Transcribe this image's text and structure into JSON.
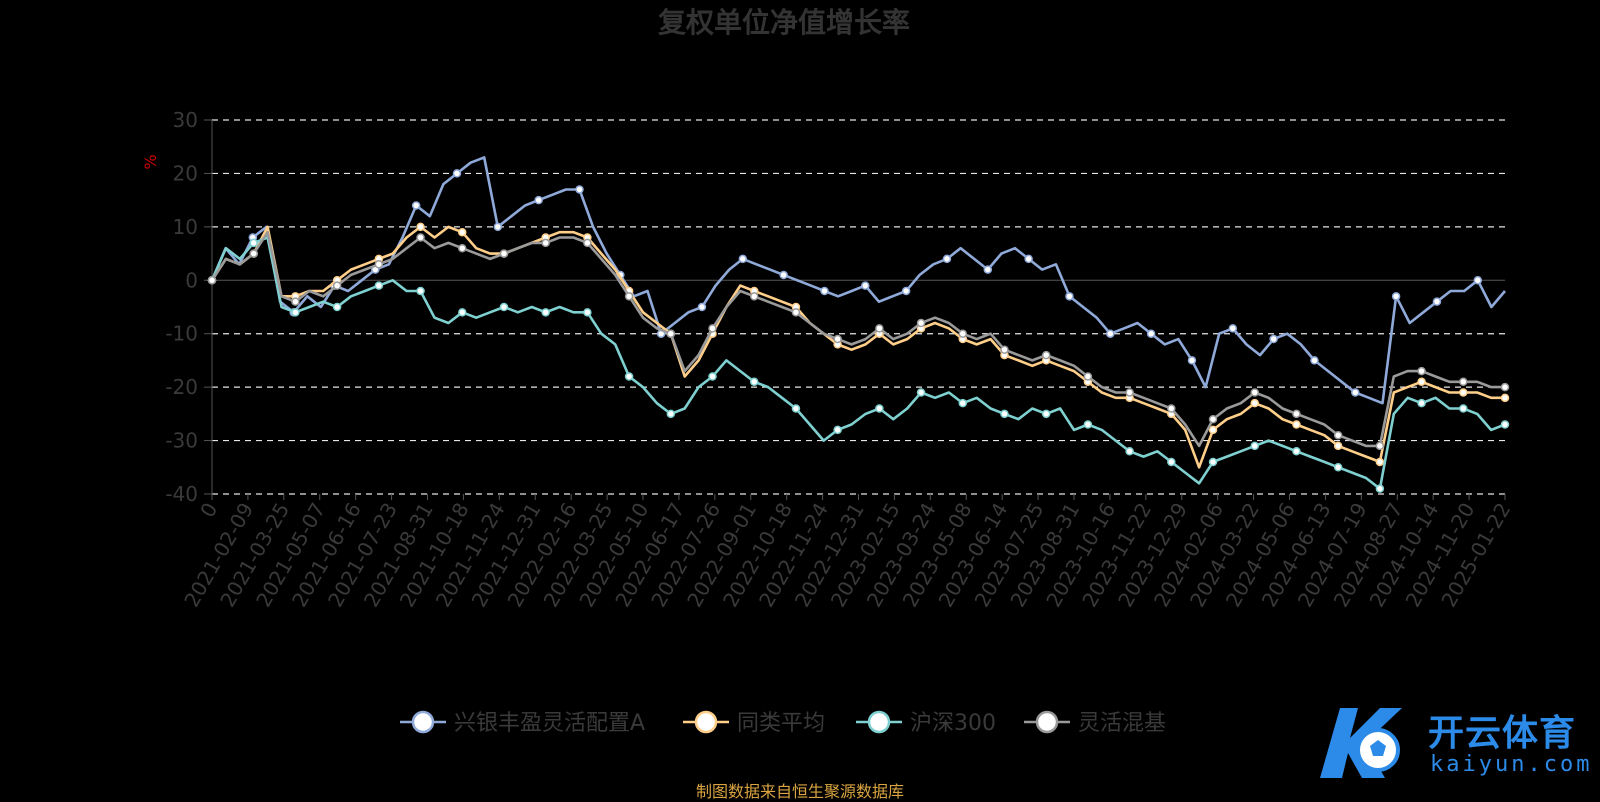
{
  "chart_data": {
    "type": "line",
    "title": "复权单位净值增长率",
    "ylabel": "%",
    "ylim": [
      -40,
      30
    ],
    "yticks": [
      30,
      20,
      10,
      0,
      -10,
      -20,
      -30,
      -40
    ],
    "grid": true,
    "legend_position": "bottom-center",
    "x_tick_labels": [
      "0",
      "2021-02-09",
      "2021-03-25",
      "2021-05-07",
      "2021-06-16",
      "2021-07-23",
      "2021-08-31",
      "2021-10-18",
      "2021-11-24",
      "2021-12-31",
      "2022-02-16",
      "2022-03-25",
      "2022-05-10",
      "2022-06-17",
      "2022-07-26",
      "2022-09-01",
      "2022-10-18",
      "2022-11-24",
      "2022-12-31",
      "2023-02-15",
      "2023-03-24",
      "2023-05-08",
      "2023-06-14",
      "2023-07-25",
      "2023-08-31",
      "2023-10-16",
      "2023-11-22",
      "2023-12-29",
      "2024-02-06",
      "2024-03-22",
      "2024-05-06",
      "2024-06-13",
      "2024-07-19",
      "2024-08-27",
      "2024-10-14",
      "2024-11-20",
      "2025-01-22"
    ],
    "series": [
      {
        "name": "兴银丰盈灵活配置A",
        "color": "#8fa9d9",
        "values": [
          0,
          6,
          3,
          8,
          10,
          -4,
          -6,
          -3,
          -5,
          -1,
          -2,
          0,
          2,
          3,
          8,
          14,
          12,
          18,
          20,
          22,
          23,
          10,
          12,
          14,
          15,
          16,
          17,
          17,
          10,
          5,
          1,
          -3,
          -2,
          -10,
          -8,
          -6,
          -5,
          -1,
          2,
          4,
          3,
          2,
          1,
          0,
          -1,
          -2,
          -3,
          -2,
          -1,
          -4,
          -3,
          -2,
          1,
          3,
          4,
          6,
          4,
          2,
          5,
          6,
          4,
          2,
          3,
          -3,
          -5,
          -7,
          -10,
          -9,
          -8,
          -10,
          -12,
          -11,
          -15,
          -20,
          -10,
          -9,
          -12,
          -14,
          -11,
          -10,
          -12,
          -15,
          -17,
          -19,
          -21,
          -22,
          -23,
          -3,
          -8,
          -6,
          -4,
          -2,
          -2,
          0,
          -5,
          -2
        ]
      },
      {
        "name": "同类平均",
        "color": "#ffcf8a",
        "values": [
          0,
          4,
          3,
          5,
          10,
          -3,
          -3,
          -2,
          -2,
          0,
          2,
          3,
          4,
          5,
          8,
          10,
          8,
          10,
          9,
          6,
          5,
          5,
          6,
          7,
          8,
          9,
          9,
          8,
          5,
          2,
          -2,
          -6,
          -8,
          -10,
          -18,
          -15,
          -10,
          -5,
          -1,
          -2,
          -3,
          -4,
          -5,
          -8,
          -10,
          -12,
          -13,
          -12,
          -10,
          -12,
          -11,
          -9,
          -8,
          -9,
          -11,
          -12,
          -11,
          -14,
          -15,
          -16,
          -15,
          -16,
          -17,
          -19,
          -21,
          -22,
          -22,
          -23,
          -24,
          -25,
          -28,
          -35,
          -28,
          -26,
          -25,
          -23,
          -24,
          -26,
          -27,
          -28,
          -29,
          -31,
          -32,
          -33,
          -34,
          -21,
          -20,
          -19,
          -20,
          -21,
          -21,
          -21,
          -22,
          -22
        ]
      },
      {
        "name": "沪深300",
        "color": "#7fd0d0",
        "values": [
          0,
          6,
          4,
          7,
          8,
          -5,
          -6,
          -5,
          -4,
          -5,
          -3,
          -2,
          -1,
          0,
          -2,
          -2,
          -7,
          -8,
          -6,
          -7,
          -6,
          -5,
          -6,
          -5,
          -6,
          -5,
          -6,
          -6,
          -10,
          -12,
          -18,
          -20,
          -23,
          -25,
          -24,
          -20,
          -18,
          -15,
          -17,
          -19,
          -20,
          -22,
          -24,
          -27,
          -30,
          -28,
          -27,
          -25,
          -24,
          -26,
          -24,
          -21,
          -22,
          -21,
          -23,
          -22,
          -24,
          -25,
          -26,
          -24,
          -25,
          -24,
          -28,
          -27,
          -28,
          -30,
          -32,
          -33,
          -32,
          -34,
          -36,
          -38,
          -34,
          -33,
          -32,
          -31,
          -30,
          -31,
          -32,
          -33,
          -34,
          -35,
          -36,
          -37,
          -39,
          -25,
          -22,
          -23,
          -22,
          -24,
          -24,
          -25,
          -28,
          -27
        ]
      },
      {
        "name": "灵活混基",
        "color": "#9a9a9a",
        "values": [
          0,
          4,
          3,
          5,
          9,
          -3,
          -4,
          -2,
          -3,
          -1,
          1,
          2,
          3,
          4,
          6,
          8,
          6,
          7,
          6,
          5,
          4,
          5,
          6,
          7,
          7,
          8,
          8,
          7,
          4,
          1,
          -3,
          -7,
          -9,
          -10,
          -17,
          -14,
          -9,
          -5,
          -2,
          -3,
          -4,
          -5,
          -6,
          -8,
          -10,
          -11,
          -12,
          -11,
          -9,
          -11,
          -10,
          -8,
          -7,
          -8,
          -10,
          -11,
          -10,
          -13,
          -14,
          -15,
          -14,
          -15,
          -16,
          -18,
          -20,
          -21,
          -21,
          -22,
          -23,
          -24,
          -27,
          -31,
          -26,
          -24,
          -23,
          -21,
          -22,
          -24,
          -25,
          -26,
          -27,
          -29,
          -30,
          -31,
          -31,
          -18,
          -17,
          -17,
          -18,
          -19,
          -19,
          -19,
          -20,
          -20
        ]
      }
    ]
  },
  "source_note": "制图数据来自恒生聚源数据库",
  "logo": {
    "main": "开云体育",
    "sub": "kaiyun.com"
  }
}
